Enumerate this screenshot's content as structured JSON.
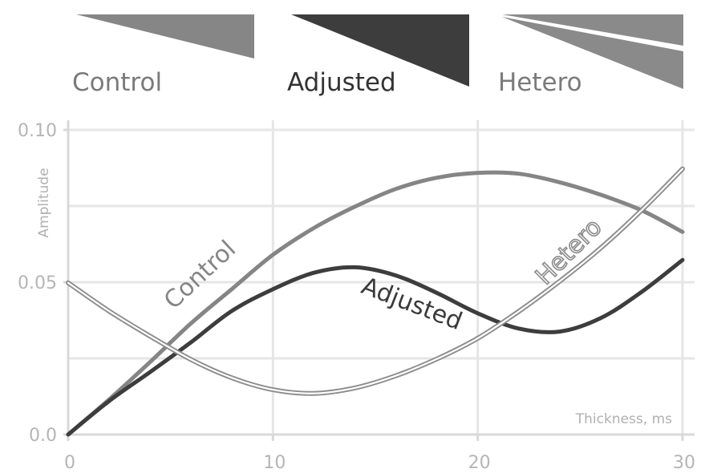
{
  "chart_data": {
    "type": "line",
    "title": "",
    "xlabel": "Thickness, ms",
    "ylabel": "Amplitude",
    "xlim": [
      0,
      30
    ],
    "ylim": [
      0,
      0.1
    ],
    "grid": true,
    "legend_placement": "top",
    "x_ticks": [
      "0",
      "10",
      "20",
      "30"
    ],
    "y_ticks": [
      "0.0",
      "0.05",
      "0.10"
    ],
    "series": [
      {
        "name": "Control",
        "color": "#858585",
        "style": "solid",
        "x": [
          0,
          2,
          4,
          6,
          8,
          10,
          12,
          14,
          16,
          18,
          20,
          22,
          24,
          26,
          28,
          30
        ],
        "y": [
          0.0,
          0.0115,
          0.0238,
          0.0365,
          0.0478,
          0.059,
          0.0678,
          0.0748,
          0.0806,
          0.0843,
          0.0859,
          0.0856,
          0.0828,
          0.0787,
          0.0736,
          0.0665
        ]
      },
      {
        "name": "Adjusted",
        "color": "#3d3d3d",
        "style": "solid",
        "x": [
          0,
          2,
          4,
          6,
          8,
          10,
          12,
          14,
          16,
          18,
          20,
          22,
          24,
          26,
          28,
          30
        ],
        "y": [
          0.0,
          0.011,
          0.0205,
          0.0303,
          0.0406,
          0.0477,
          0.0531,
          0.0549,
          0.0522,
          0.0465,
          0.0398,
          0.0348,
          0.0338,
          0.0382,
          0.0468,
          0.0573
        ]
      },
      {
        "name": "Hetero",
        "color": "#8c8c8c",
        "style": "double",
        "x": [
          0,
          2,
          4,
          6,
          8,
          10,
          12,
          14,
          16,
          18,
          20,
          22,
          24,
          26,
          28,
          30
        ],
        "y": [
          0.0498,
          0.0405,
          0.0323,
          0.0246,
          0.0186,
          0.0147,
          0.0135,
          0.0153,
          0.0193,
          0.0248,
          0.0316,
          0.0404,
          0.0503,
          0.0612,
          0.0736,
          0.0872
        ]
      }
    ],
    "legend": {
      "items": [
        {
          "label": "Control",
          "color": "#868686",
          "text_color": "#7a7a7a",
          "shape": "wedge"
        },
        {
          "label": "Adjusted",
          "color": "#3d3d3d",
          "text_color": "#333333",
          "shape": "wedge"
        },
        {
          "label": "Hetero",
          "color": "#8a8a8a",
          "text_color": "#7a7a7a",
          "shape": "split-wedge"
        }
      ]
    }
  }
}
